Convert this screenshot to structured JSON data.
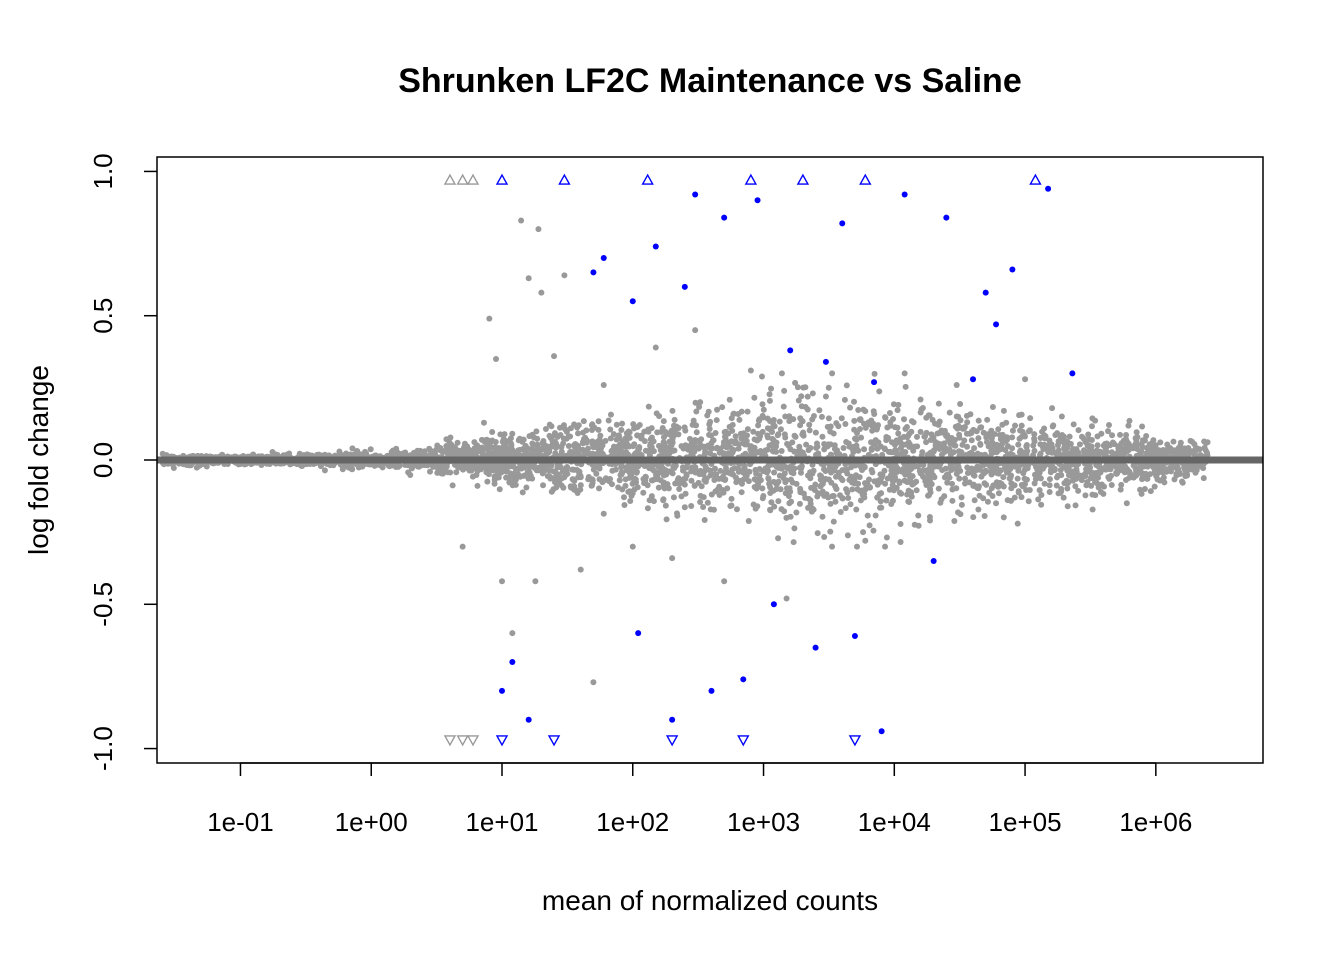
{
  "chart_data": {
    "type": "scatter",
    "title": "Shrunken LF2C Maintenance vs Saline",
    "xlabel": "mean of normalized counts",
    "ylabel": "log fold change",
    "x_scale": "log10",
    "xlim": [
      0.023,
      6600000
    ],
    "ylim": [
      -1.05,
      1.05
    ],
    "x_ticks": [
      0.1,
      1,
      10,
      100,
      1000,
      10000,
      100000,
      1000000
    ],
    "x_tick_labels": [
      "1e-01",
      "1e+00",
      "1e+01",
      "1e+02",
      "1e+03",
      "1e+04",
      "1e+05",
      "1e+06"
    ],
    "y_ticks": [
      -1.0,
      -0.5,
      0.0,
      0.5,
      1.0
    ],
    "y_tick_labels": [
      "-1.0",
      "-0.5",
      "0.0",
      "0.5",
      "1.0"
    ],
    "grid": false,
    "legend": "none",
    "reference_line": {
      "y": 0,
      "color": "#666666"
    },
    "colors": {
      "nonsignificant": "#999999",
      "significant": "#0000ff",
      "reference_line": "#666666"
    },
    "series": [
      {
        "values": [
          {
            "x": 0.05,
            "y": 0.0
          },
          {
            "x": 0.2,
            "y": 0.01
          },
          {
            "x": 0.5,
            "y": -0.01
          },
          {
            "x": 1.5,
            "y": 0.02
          },
          {
            "x": 5,
            "y": -0.3
          },
          {
            "x": 8,
            "y": 0.49
          },
          {
            "x": 9,
            "y": 0.35
          },
          {
            "x": 10,
            "y": -0.42
          },
          {
            "x": 12,
            "y": -0.6
          },
          {
            "x": 14,
            "y": 0.83
          },
          {
            "x": 16,
            "y": 0.63
          },
          {
            "x": 18,
            "y": -0.42
          },
          {
            "x": 19,
            "y": 0.8
          },
          {
            "x": 20,
            "y": 0.58
          },
          {
            "x": 25,
            "y": 0.36
          },
          {
            "x": 30,
            "y": 0.64
          },
          {
            "x": 40,
            "y": -0.38
          },
          {
            "x": 50,
            "y": -0.77
          },
          {
            "x": 60,
            "y": 0.26
          },
          {
            "x": 100,
            "y": -0.3
          },
          {
            "x": 150,
            "y": 0.39
          },
          {
            "x": 200,
            "y": -0.34
          },
          {
            "x": 300,
            "y": 0.45
          },
          {
            "x": 500,
            "y": -0.42
          },
          {
            "x": 800,
            "y": 0.31
          },
          {
            "x": 1500,
            "y": -0.48
          },
          {
            "x": 3000,
            "y": 0.22
          },
          {
            "x": 6000,
            "y": -0.28
          },
          {
            "x": 12000,
            "y": 0.3
          },
          {
            "x": 30000,
            "y": 0.26
          },
          {
            "x": 60000,
            "y": -0.15
          },
          {
            "x": 100000,
            "y": 0.28
          },
          {
            "x": 200000,
            "y": -0.08
          },
          {
            "x": 400000,
            "y": 0.05
          },
          {
            "x": 600000,
            "y": -0.15
          },
          {
            "x": 1700000,
            "y": -0.03
          },
          {
            "x": 4,
            "y": 0.97
          },
          {
            "x": 5,
            "y": 0.97
          },
          {
            "x": 6,
            "y": 0.97
          },
          {
            "x": 4,
            "y": -0.97
          },
          {
            "x": 5,
            "y": -0.97
          },
          {
            "x": 6,
            "y": -0.97
          }
        ]
      },
      {
        "values": [
          {
            "x": 10,
            "y": -0.8
          },
          {
            "x": 12,
            "y": -0.7
          },
          {
            "x": 16,
            "y": -0.9
          },
          {
            "x": 50,
            "y": 0.65
          },
          {
            "x": 60,
            "y": 0.7
          },
          {
            "x": 100,
            "y": 0.55
          },
          {
            "x": 110,
            "y": -0.6
          },
          {
            "x": 150,
            "y": 0.74
          },
          {
            "x": 200,
            "y": -0.9
          },
          {
            "x": 250,
            "y": 0.6
          },
          {
            "x": 300,
            "y": 0.92
          },
          {
            "x": 400,
            "y": -0.8
          },
          {
            "x": 500,
            "y": 0.84
          },
          {
            "x": 700,
            "y": -0.76
          },
          {
            "x": 900,
            "y": 0.9
          },
          {
            "x": 1200,
            "y": -0.5
          },
          {
            "x": 1600,
            "y": 0.38
          },
          {
            "x": 2500,
            "y": -0.65
          },
          {
            "x": 3000,
            "y": 0.34
          },
          {
            "x": 4000,
            "y": 0.82
          },
          {
            "x": 5000,
            "y": -0.61
          },
          {
            "x": 7000,
            "y": 0.27
          },
          {
            "x": 8000,
            "y": -0.94
          },
          {
            "x": 12000,
            "y": 0.92
          },
          {
            "x": 20000,
            "y": -0.35
          },
          {
            "x": 25000,
            "y": 0.84
          },
          {
            "x": 40000,
            "y": 0.28
          },
          {
            "x": 50000,
            "y": 0.58
          },
          {
            "x": 60000,
            "y": 0.47
          },
          {
            "x": 80000,
            "y": 0.66
          },
          {
            "x": 150000,
            "y": 0.94
          },
          {
            "x": 230000,
            "y": 0.3
          },
          {
            "x": 10,
            "y": 0.97
          },
          {
            "x": 30,
            "y": 0.97
          },
          {
            "x": 130,
            "y": 0.97
          },
          {
            "x": 800,
            "y": 0.97
          },
          {
            "x": 2000,
            "y": 0.97
          },
          {
            "x": 6000,
            "y": 0.97
          },
          {
            "x": 120000,
            "y": 0.97
          },
          {
            "x": 10,
            "y": -0.97
          },
          {
            "x": 25,
            "y": -0.97
          },
          {
            "x": 200,
            "y": -0.97
          },
          {
            "x": 700,
            "y": -0.97
          },
          {
            "x": 5000,
            "y": -0.97
          }
        ]
      }
    ]
  }
}
